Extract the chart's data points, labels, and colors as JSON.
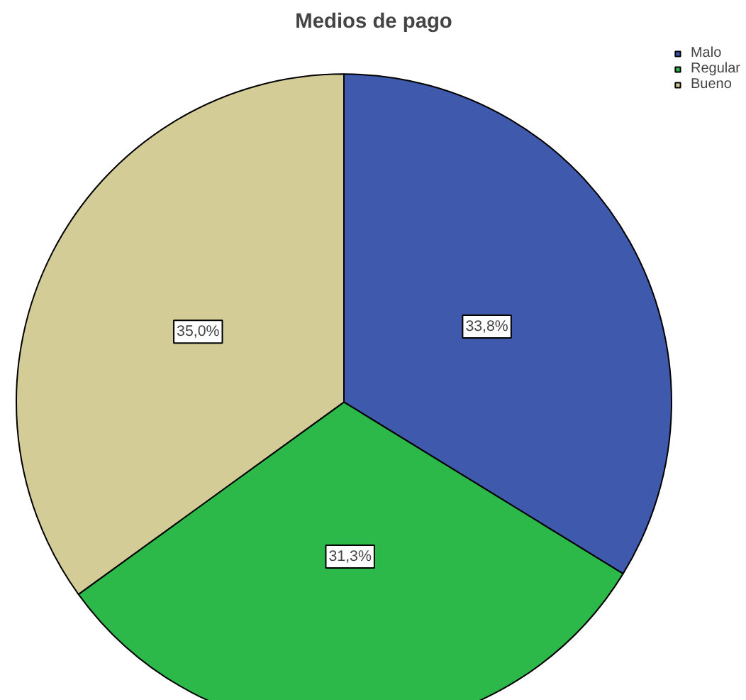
{
  "chart_data": {
    "type": "pie",
    "title": "Medios de pago",
    "categories": [
      "Malo",
      "Regular",
      "Bueno"
    ],
    "values": [
      33.8,
      31.3,
      35.0
    ],
    "colors": [
      "#3f59ad",
      "#2db84a",
      "#d3cc97"
    ],
    "value_labels": [
      "33,8%",
      "31,3%",
      "35,0%"
    ],
    "legend": "top right"
  }
}
